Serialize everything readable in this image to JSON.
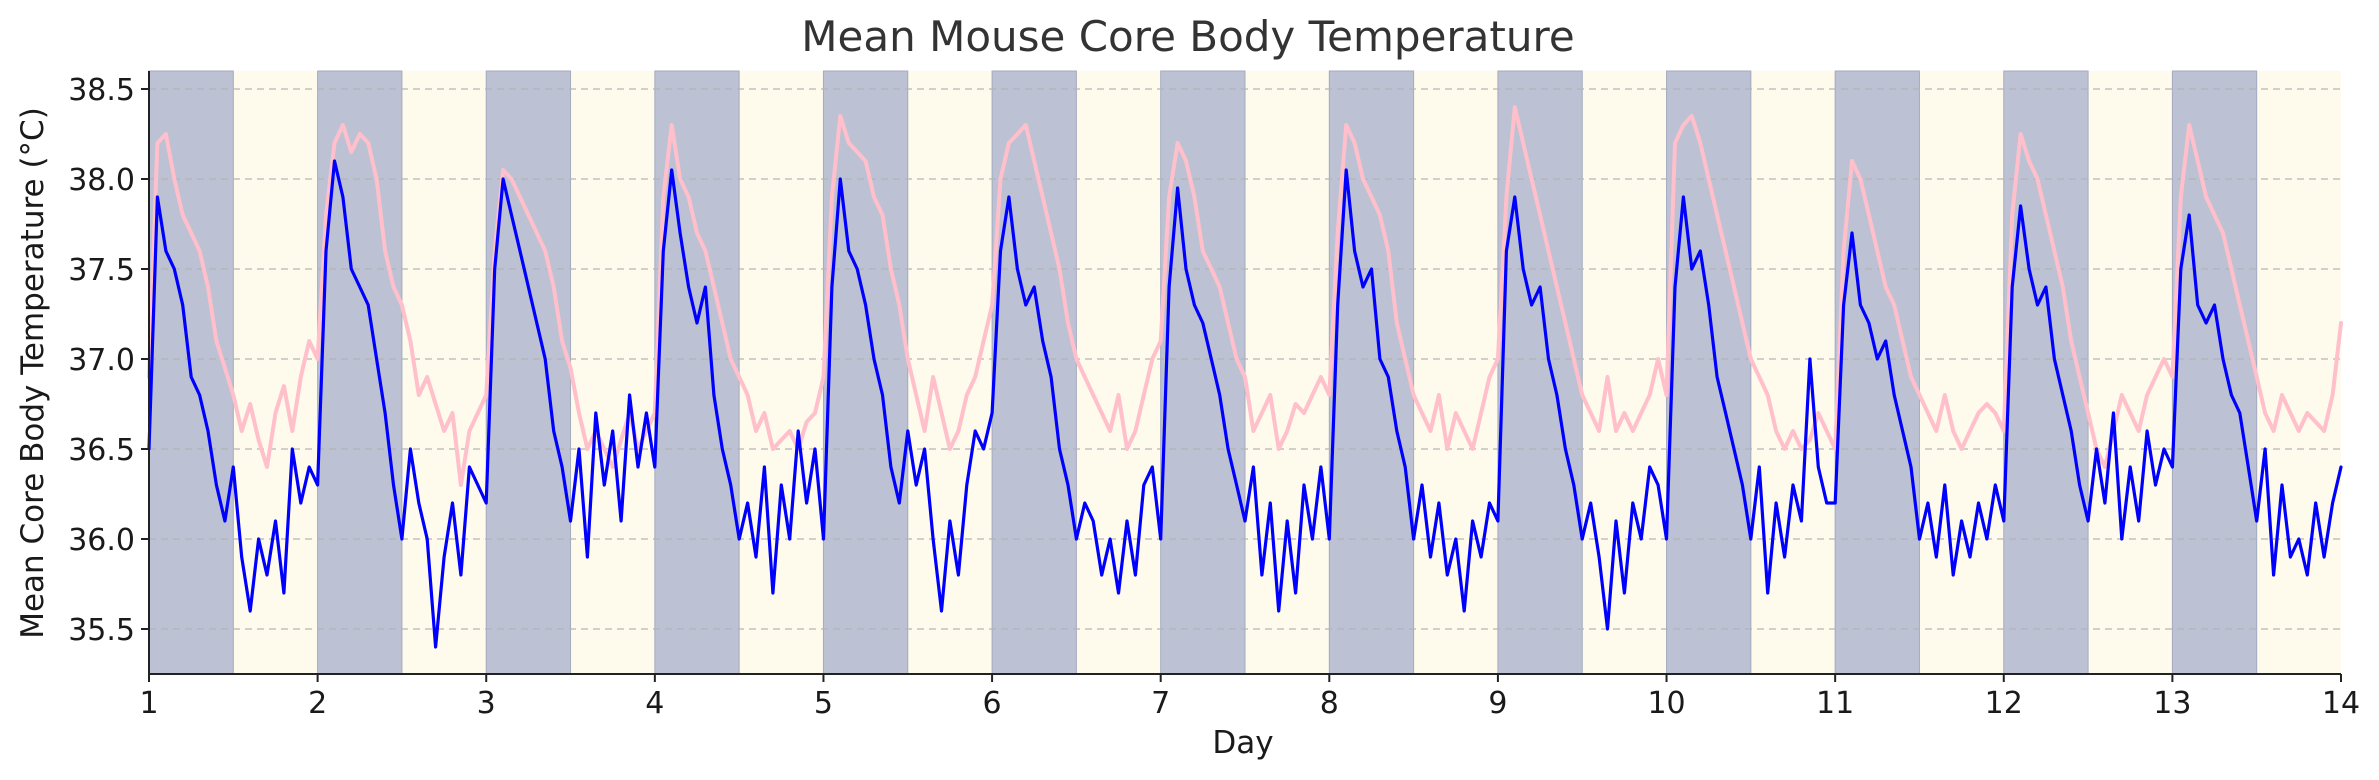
{
  "chart_data": {
    "type": "line",
    "title": "Mean Mouse Core Body Temperature",
    "xlabel": "Day",
    "ylabel": "Mean Core Body Temperature (°C)",
    "xlim": [
      1,
      14
    ],
    "ylim": [
      35.25,
      38.6
    ],
    "x_ticks": [
      1,
      2,
      3,
      4,
      5,
      6,
      7,
      8,
      9,
      10,
      11,
      12,
      13,
      14
    ],
    "y_ticks": [
      35.5,
      36.0,
      36.5,
      37.0,
      37.5,
      38.0,
      38.5
    ],
    "y_tick_labels": [
      "35.5",
      "36.0",
      "36.5",
      "37.0",
      "37.5",
      "38.0",
      "38.5"
    ],
    "grid": "y",
    "legend": "none",
    "dark_phase_color": "#bcc1d3",
    "light_phase_color": "#fefbec",
    "dark_phases": [
      [
        1,
        1.5
      ],
      [
        2,
        2.5
      ],
      [
        3,
        3.5
      ],
      [
        4,
        4.5
      ],
      [
        5,
        5.5
      ],
      [
        6,
        6.5
      ],
      [
        7,
        7.5
      ],
      [
        8,
        8.5
      ],
      [
        9,
        9.5
      ],
      [
        10,
        10.5
      ],
      [
        11,
        11.5
      ],
      [
        12,
        12.5
      ],
      [
        13,
        13.5
      ]
    ],
    "series": [
      {
        "color": "#ffc0cb",
        "x": [
          1.0,
          1.05,
          1.1,
          1.15,
          1.2,
          1.25,
          1.3,
          1.35,
          1.4,
          1.45,
          1.5,
          1.55,
          1.6,
          1.65,
          1.7,
          1.75,
          1.8,
          1.85,
          1.9,
          1.95,
          2.0,
          2.05,
          2.1,
          2.15,
          2.2,
          2.25,
          2.3,
          2.35,
          2.4,
          2.45,
          2.5,
          2.55,
          2.6,
          2.65,
          2.7,
          2.75,
          2.8,
          2.85,
          2.9,
          2.95,
          3.0,
          3.05,
          3.1,
          3.15,
          3.2,
          3.25,
          3.3,
          3.35,
          3.4,
          3.45,
          3.5,
          3.55,
          3.6,
          3.65,
          3.7,
          3.75,
          3.8,
          3.85,
          3.9,
          3.95,
          4.0,
          4.05,
          4.1,
          4.15,
          4.2,
          4.25,
          4.3,
          4.35,
          4.4,
          4.45,
          4.5,
          4.55,
          4.6,
          4.65,
          4.7,
          4.75,
          4.8,
          4.85,
          4.9,
          4.95,
          5.0,
          5.05,
          5.1,
          5.15,
          5.2,
          5.25,
          5.3,
          5.35,
          5.4,
          5.45,
          5.5,
          5.55,
          5.6,
          5.65,
          5.7,
          5.75,
          5.8,
          5.85,
          5.9,
          5.95,
          6.0,
          6.05,
          6.1,
          6.15,
          6.2,
          6.25,
          6.3,
          6.35,
          6.4,
          6.45,
          6.5,
          6.55,
          6.6,
          6.65,
          6.7,
          6.75,
          6.8,
          6.85,
          6.9,
          6.95,
          7.0,
          7.05,
          7.1,
          7.15,
          7.2,
          7.25,
          7.3,
          7.35,
          7.4,
          7.45,
          7.5,
          7.55,
          7.6,
          7.65,
          7.7,
          7.75,
          7.8,
          7.85,
          7.9,
          7.95,
          8.0,
          8.05,
          8.1,
          8.15,
          8.2,
          8.25,
          8.3,
          8.35,
          8.4,
          8.45,
          8.5,
          8.55,
          8.6,
          8.65,
          8.7,
          8.75,
          8.8,
          8.85,
          8.9,
          8.95,
          9.0,
          9.05,
          9.1,
          9.15,
          9.2,
          9.25,
          9.3,
          9.35,
          9.4,
          9.45,
          9.5,
          9.55,
          9.6,
          9.65,
          9.7,
          9.75,
          9.8,
          9.85,
          9.9,
          9.95,
          10.0,
          10.05,
          10.1,
          10.15,
          10.2,
          10.25,
          10.3,
          10.35,
          10.4,
          10.45,
          10.5,
          10.55,
          10.6,
          10.65,
          10.7,
          10.75,
          10.8,
          10.85,
          10.9,
          10.95,
          11.0,
          11.05,
          11.1,
          11.15,
          11.2,
          11.25,
          11.3,
          11.35,
          11.4,
          11.45,
          11.5,
          11.55,
          11.6,
          11.65,
          11.7,
          11.75,
          11.8,
          11.85,
          11.9,
          11.95,
          12.0,
          12.05,
          12.1,
          12.15,
          12.2,
          12.25,
          12.3,
          12.35,
          12.4,
          12.45,
          12.5,
          12.55,
          12.6,
          12.65,
          12.7,
          12.75,
          12.8,
          12.85,
          12.9,
          12.95,
          13.0,
          13.05,
          13.1,
          13.15,
          13.2,
          13.25,
          13.3,
          13.35,
          13.4,
          13.45,
          13.5,
          13.55,
          13.6,
          13.65,
          13.7,
          13.75,
          13.8,
          13.85,
          13.9,
          13.95,
          14.0
        ],
        "y": [
          36.9,
          38.2,
          38.25,
          38.0,
          37.8,
          37.7,
          37.6,
          37.4,
          37.1,
          36.95,
          36.8,
          36.6,
          36.75,
          36.55,
          36.4,
          36.7,
          36.85,
          36.6,
          36.9,
          37.1,
          37.0,
          37.8,
          38.2,
          38.3,
          38.15,
          38.25,
          38.2,
          38.0,
          37.6,
          37.4,
          37.3,
          37.1,
          36.8,
          36.9,
          36.75,
          36.6,
          36.7,
          36.3,
          36.6,
          36.7,
          36.8,
          37.6,
          38.05,
          38.0,
          37.9,
          37.8,
          37.7,
          37.6,
          37.4,
          37.1,
          36.95,
          36.7,
          36.5,
          36.6,
          36.5,
          36.4,
          36.55,
          36.7,
          36.5,
          36.6,
          36.7,
          37.9,
          38.3,
          38.0,
          37.9,
          37.7,
          37.6,
          37.4,
          37.2,
          37.0,
          36.9,
          36.8,
          36.6,
          36.7,
          36.5,
          36.55,
          36.6,
          36.5,
          36.65,
          36.7,
          36.9,
          37.9,
          38.35,
          38.2,
          38.15,
          38.1,
          37.9,
          37.8,
          37.5,
          37.3,
          37.0,
          36.8,
          36.6,
          36.9,
          36.7,
          36.5,
          36.6,
          36.8,
          36.9,
          37.1,
          37.3,
          38.0,
          38.2,
          38.25,
          38.3,
          38.1,
          37.9,
          37.7,
          37.5,
          37.2,
          37.0,
          36.9,
          36.8,
          36.7,
          36.6,
          36.8,
          36.5,
          36.6,
          36.8,
          37.0,
          37.1,
          37.9,
          38.2,
          38.1,
          37.9,
          37.6,
          37.5,
          37.4,
          37.2,
          37.0,
          36.9,
          36.6,
          36.7,
          36.8,
          36.5,
          36.6,
          36.75,
          36.7,
          36.8,
          36.9,
          36.8,
          37.7,
          38.3,
          38.2,
          38.0,
          37.9,
          37.8,
          37.6,
          37.2,
          37.0,
          36.8,
          36.7,
          36.6,
          36.8,
          36.5,
          36.7,
          36.6,
          36.5,
          36.7,
          36.9,
          37.0,
          37.9,
          38.4,
          38.2,
          38.0,
          37.8,
          37.6,
          37.4,
          37.2,
          37.0,
          36.8,
          36.7,
          36.6,
          36.9,
          36.6,
          36.7,
          36.6,
          36.7,
          36.8,
          37.0,
          36.8,
          38.2,
          38.3,
          38.35,
          38.2,
          38.0,
          37.8,
          37.6,
          37.4,
          37.2,
          37.0,
          36.9,
          36.8,
          36.6,
          36.5,
          36.6,
          36.5,
          36.55,
          36.7,
          36.6,
          36.5,
          37.6,
          38.1,
          38.0,
          37.8,
          37.6,
          37.4,
          37.3,
          37.1,
          36.9,
          36.8,
          36.7,
          36.6,
          36.8,
          36.6,
          36.5,
          36.6,
          36.7,
          36.75,
          36.7,
          36.6,
          37.8,
          38.25,
          38.1,
          38.0,
          37.8,
          37.6,
          37.4,
          37.1,
          36.9,
          36.7,
          36.5,
          36.4,
          36.6,
          36.8,
          36.7,
          36.6,
          36.8,
          36.9,
          37.0,
          36.9,
          37.9,
          38.3,
          38.1,
          37.9,
          37.8,
          37.7,
          37.5,
          37.3,
          37.1,
          36.9,
          36.7,
          36.6,
          36.8,
          36.7,
          36.6,
          36.7,
          36.65,
          36.6,
          36.8,
          37.2
        ]
      },
      {
        "color": "#0000ff",
        "x": [
          1.0,
          1.05,
          1.1,
          1.15,
          1.2,
          1.25,
          1.3,
          1.35,
          1.4,
          1.45,
          1.5,
          1.55,
          1.6,
          1.65,
          1.7,
          1.75,
          1.8,
          1.85,
          1.9,
          1.95,
          2.0,
          2.05,
          2.1,
          2.15,
          2.2,
          2.25,
          2.3,
          2.35,
          2.4,
          2.45,
          2.5,
          2.55,
          2.6,
          2.65,
          2.7,
          2.75,
          2.8,
          2.85,
          2.9,
          2.95,
          3.0,
          3.05,
          3.1,
          3.15,
          3.2,
          3.25,
          3.3,
          3.35,
          3.4,
          3.45,
          3.5,
          3.55,
          3.6,
          3.65,
          3.7,
          3.75,
          3.8,
          3.85,
          3.9,
          3.95,
          4.0,
          4.05,
          4.1,
          4.15,
          4.2,
          4.25,
          4.3,
          4.35,
          4.4,
          4.45,
          4.5,
          4.55,
          4.6,
          4.65,
          4.7,
          4.75,
          4.8,
          4.85,
          4.9,
          4.95,
          5.0,
          5.05,
          5.1,
          5.15,
          5.2,
          5.25,
          5.3,
          5.35,
          5.4,
          5.45,
          5.5,
          5.55,
          5.6,
          5.65,
          5.7,
          5.75,
          5.8,
          5.85,
          5.9,
          5.95,
          6.0,
          6.05,
          6.1,
          6.15,
          6.2,
          6.25,
          6.3,
          6.35,
          6.4,
          6.45,
          6.5,
          6.55,
          6.6,
          6.65,
          6.7,
          6.75,
          6.8,
          6.85,
          6.9,
          6.95,
          7.0,
          7.05,
          7.1,
          7.15,
          7.2,
          7.25,
          7.3,
          7.35,
          7.4,
          7.45,
          7.5,
          7.55,
          7.6,
          7.65,
          7.7,
          7.75,
          7.8,
          7.85,
          7.9,
          7.95,
          8.0,
          8.05,
          8.1,
          8.15,
          8.2,
          8.25,
          8.3,
          8.35,
          8.4,
          8.45,
          8.5,
          8.55,
          8.6,
          8.65,
          8.7,
          8.75,
          8.8,
          8.85,
          8.9,
          8.95,
          9.0,
          9.05,
          9.1,
          9.15,
          9.2,
          9.25,
          9.3,
          9.35,
          9.4,
          9.45,
          9.5,
          9.55,
          9.6,
          9.65,
          9.7,
          9.75,
          9.8,
          9.85,
          9.9,
          9.95,
          10.0,
          10.05,
          10.1,
          10.15,
          10.2,
          10.25,
          10.3,
          10.35,
          10.4,
          10.45,
          10.5,
          10.55,
          10.6,
          10.65,
          10.7,
          10.75,
          10.8,
          10.85,
          10.9,
          10.95,
          11.0,
          11.05,
          11.1,
          11.15,
          11.2,
          11.25,
          11.3,
          11.35,
          11.4,
          11.45,
          11.5,
          11.55,
          11.6,
          11.65,
          11.7,
          11.75,
          11.8,
          11.85,
          11.9,
          11.95,
          12.0,
          12.05,
          12.1,
          12.15,
          12.2,
          12.25,
          12.3,
          12.35,
          12.4,
          12.45,
          12.5,
          12.55,
          12.6,
          12.65,
          12.7,
          12.75,
          12.8,
          12.85,
          12.9,
          12.95,
          13.0,
          13.05,
          13.1,
          13.15,
          13.2,
          13.25,
          13.3,
          13.35,
          13.4,
          13.45,
          13.5,
          13.55,
          13.6,
          13.65,
          13.7,
          13.75,
          13.8,
          13.85,
          13.9,
          13.95,
          14.0
        ],
        "y": [
          36.5,
          37.9,
          37.6,
          37.5,
          37.3,
          36.9,
          36.8,
          36.6,
          36.3,
          36.1,
          36.4,
          35.9,
          35.6,
          36.0,
          35.8,
          36.1,
          35.7,
          36.5,
          36.2,
          36.4,
          36.3,
          37.6,
          38.1,
          37.9,
          37.5,
          37.4,
          37.3,
          37.0,
          36.7,
          36.3,
          36.0,
          36.5,
          36.2,
          36.0,
          35.4,
          35.9,
          36.2,
          35.8,
          36.4,
          36.3,
          36.2,
          37.5,
          38.0,
          37.8,
          37.6,
          37.4,
          37.2,
          37.0,
          36.6,
          36.4,
          36.1,
          36.5,
          35.9,
          36.7,
          36.3,
          36.6,
          36.1,
          36.8,
          36.4,
          36.7,
          36.4,
          37.6,
          38.05,
          37.7,
          37.4,
          37.2,
          37.4,
          36.8,
          36.5,
          36.3,
          36.0,
          36.2,
          35.9,
          36.4,
          35.7,
          36.3,
          36.0,
          36.6,
          36.2,
          36.5,
          36.0,
          37.4,
          38.0,
          37.6,
          37.5,
          37.3,
          37.0,
          36.8,
          36.4,
          36.2,
          36.6,
          36.3,
          36.5,
          36.0,
          35.6,
          36.1,
          35.8,
          36.3,
          36.6,
          36.5,
          36.7,
          37.6,
          37.9,
          37.5,
          37.3,
          37.4,
          37.1,
          36.9,
          36.5,
          36.3,
          36.0,
          36.2,
          36.1,
          35.8,
          36.0,
          35.7,
          36.1,
          35.8,
          36.3,
          36.4,
          36.0,
          37.4,
          37.95,
          37.5,
          37.3,
          37.2,
          37.0,
          36.8,
          36.5,
          36.3,
          36.1,
          36.4,
          35.8,
          36.2,
          35.6,
          36.1,
          35.7,
          36.3,
          36.0,
          36.4,
          36.0,
          37.3,
          38.05,
          37.6,
          37.4,
          37.5,
          37.0,
          36.9,
          36.6,
          36.4,
          36.0,
          36.3,
          35.9,
          36.2,
          35.8,
          36.0,
          35.6,
          36.1,
          35.9,
          36.2,
          36.1,
          37.6,
          37.9,
          37.5,
          37.3,
          37.4,
          37.0,
          36.8,
          36.5,
          36.3,
          36.0,
          36.2,
          35.9,
          35.5,
          36.1,
          35.7,
          36.2,
          36.0,
          36.4,
          36.3,
          36.0,
          37.4,
          37.9,
          37.5,
          37.6,
          37.3,
          36.9,
          36.7,
          36.5,
          36.3,
          36.0,
          36.4,
          35.7,
          36.2,
          35.9,
          36.3,
          36.1,
          37.0,
          36.4,
          36.2,
          36.2,
          37.3,
          37.7,
          37.3,
          37.2,
          37.0,
          37.1,
          36.8,
          36.6,
          36.4,
          36.0,
          36.2,
          35.9,
          36.3,
          35.8,
          36.1,
          35.9,
          36.2,
          36.0,
          36.3,
          36.1,
          37.4,
          37.85,
          37.5,
          37.3,
          37.4,
          37.0,
          36.8,
          36.6,
          36.3,
          36.1,
          36.5,
          36.2,
          36.7,
          36.0,
          36.4,
          36.1,
          36.6,
          36.3,
          36.5,
          36.4,
          37.5,
          37.8,
          37.3,
          37.2,
          37.3,
          37.0,
          36.8,
          36.7,
          36.4,
          36.1,
          36.5,
          35.8,
          36.3,
          35.9,
          36.0,
          35.8,
          36.2,
          35.9,
          36.2,
          36.4
        ]
      }
    ]
  }
}
